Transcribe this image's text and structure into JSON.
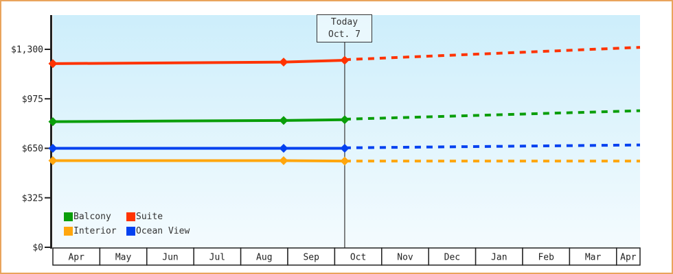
{
  "frame": {
    "border_color": "#e9a45c",
    "background": "#ffffff"
  },
  "chart_data": {
    "type": "line",
    "description": "Cabin price history by month with forecast after today",
    "x_categories": [
      "Apr",
      "May",
      "Jun",
      "Jul",
      "Aug",
      "Sep",
      "Oct",
      "Nov",
      "Dec",
      "Jan",
      "Feb",
      "Mar",
      "Apr"
    ],
    "y_ticks": [
      {
        "label": "$0",
        "value": 0
      },
      {
        "label": "$325",
        "value": 325
      },
      {
        "label": "$650",
        "value": 650
      },
      {
        "label": "$975",
        "value": 975
      },
      {
        "label": "$1,300",
        "value": 1300
      }
    ],
    "ylim": [
      0,
      1300
    ],
    "grid": "off",
    "plot_bg_top": "#cdeefb",
    "plot_bg_bottom": "#f4fbfe",
    "axis_color": "#222222",
    "today": {
      "label_line1": "Today",
      "label_line2": "Oct. 7",
      "x_frac": 0.497,
      "line_color": "#444444"
    },
    "series": [
      {
        "name": "Balcony",
        "color": "#0a9e0a",
        "solid": [
          [
            0,
            825
          ],
          [
            0.393,
            833
          ],
          [
            0.497,
            838
          ]
        ],
        "dashed": [
          [
            0.497,
            841
          ],
          [
            1,
            897
          ]
        ],
        "markers": [
          0,
          0.393,
          0.497
        ]
      },
      {
        "name": "Suite",
        "color": "#ff3300",
        "solid": [
          [
            0,
            1206
          ],
          [
            0.393,
            1216
          ],
          [
            0.497,
            1228
          ]
        ],
        "dashed": [
          [
            0.497,
            1232
          ],
          [
            1,
            1313
          ]
        ],
        "markers": [
          0,
          0.393,
          0.497
        ]
      },
      {
        "name": "Interior",
        "color": "#ffa60d",
        "solid": [
          [
            0,
            569
          ],
          [
            0.393,
            569
          ],
          [
            0.497,
            566
          ]
        ],
        "dashed": [
          [
            0.497,
            566
          ],
          [
            1,
            566
          ]
        ],
        "markers": [
          0,
          0.393,
          0.497
        ]
      },
      {
        "name": "Ocean View",
        "color": "#0341f0",
        "solid": [
          [
            0,
            650
          ],
          [
            0.393,
            650
          ],
          [
            0.497,
            650
          ]
        ],
        "dashed": [
          [
            0.497,
            653
          ],
          [
            1,
            672
          ]
        ],
        "markers": [
          0,
          0.393,
          0.497
        ]
      }
    ],
    "legend": [
      {
        "label": "Balcony",
        "color": "#0a9e0a"
      },
      {
        "label": "Suite",
        "color": "#ff3300"
      },
      {
        "label": "Interior",
        "color": "#ffa60d"
      },
      {
        "label": "Ocean View",
        "color": "#0341f0"
      }
    ],
    "legend_position": "inside-bottom-left"
  }
}
